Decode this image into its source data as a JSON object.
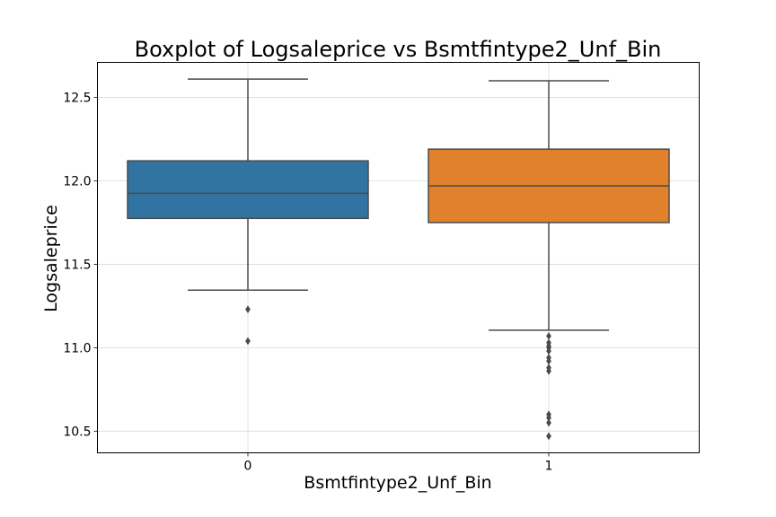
{
  "chart_data": {
    "type": "boxplot",
    "title": "Boxplot of Logsaleprice vs Bsmtfintype2_Unf_Bin",
    "xlabel": "Bsmtfintype2_Unf_Bin",
    "ylabel": "Logsaleprice",
    "categories": [
      "0",
      "1"
    ],
    "ylim": [
      10.37,
      12.71
    ],
    "yticks": [
      10.5,
      11.0,
      11.5,
      12.0,
      12.5
    ],
    "ytick_labels": [
      "10.5",
      "11.0",
      "11.5",
      "12.0",
      "12.5"
    ],
    "grid": true,
    "boxes": [
      {
        "category": "0",
        "color": "#3274a1",
        "whisker_low": 11.345,
        "q1": 11.775,
        "median": 11.925,
        "q3": 12.12,
        "whisker_high": 12.61,
        "outliers": [
          11.23,
          11.04
        ]
      },
      {
        "category": "1",
        "color": "#e1812c",
        "whisker_low": 11.105,
        "q1": 11.75,
        "median": 11.97,
        "q3": 12.19,
        "whisker_high": 12.6,
        "outliers": [
          11.07,
          11.03,
          11.01,
          11.0,
          10.98,
          10.94,
          10.92,
          10.88,
          10.86,
          10.6,
          10.58,
          10.55,
          10.47
        ]
      }
    ]
  }
}
